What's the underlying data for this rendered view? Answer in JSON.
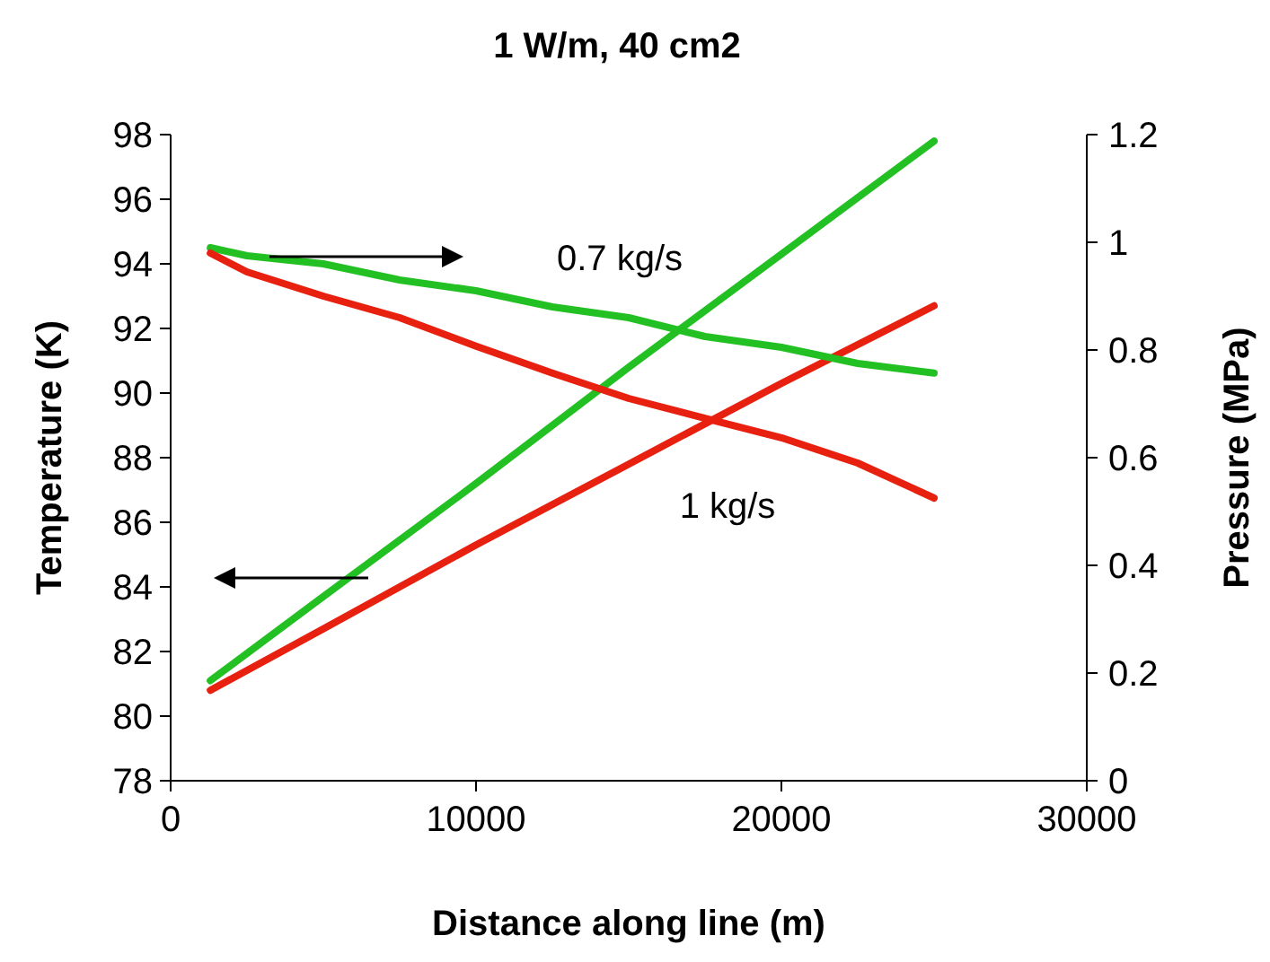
{
  "chart_data": {
    "type": "line",
    "title": "1 W/m, 40 cm2",
    "xlabel": "Distance along line (m)",
    "ylabel": "Temperature (K)",
    "y2label": "Pressure (MPa)",
    "xlim": [
      0,
      30000
    ],
    "xticks": [
      0,
      10000,
      20000,
      30000
    ],
    "ylim": [
      78,
      98
    ],
    "yticks": [
      78,
      80,
      82,
      84,
      86,
      88,
      90,
      92,
      94,
      96,
      98
    ],
    "y2lim": [
      0,
      1.2
    ],
    "y2ticks": [
      {
        "value": 0,
        "label": "0"
      },
      {
        "value": 0.2,
        "label": "0.2"
      },
      {
        "value": 0.4,
        "label": "0.4"
      },
      {
        "value": 0.6,
        "label": "0.6"
      },
      {
        "value": 0.8,
        "label": "0.8"
      },
      {
        "value": 1,
        "label": "1"
      },
      {
        "value": 1.2,
        "label": "1.2"
      }
    ],
    "grid": false,
    "marker": "none",
    "line_style": "solid",
    "series": [
      {
        "color": "#22c022",
        "x": [
          1300,
          5000,
          10000,
          15000,
          20000,
          25000
        ],
        "values": [
          81.1,
          83.7,
          87.2,
          90.8,
          94.3,
          97.8
        ]
      },
      {
        "color": "#e82010",
        "x": [
          1300,
          5000,
          10000,
          15000,
          20000,
          25000
        ],
        "values": [
          80.8,
          82.7,
          85.3,
          87.8,
          90.3,
          92.7
        ]
      },
      {
        "color": "#22c022",
        "axis": "y2",
        "x": [
          1300,
          2500,
          5000,
          7500,
          10000,
          12500,
          15000,
          17500,
          20000,
          22500,
          25000
        ],
        "values": [
          0.99,
          0.975,
          0.96,
          0.93,
          0.91,
          0.88,
          0.86,
          0.825,
          0.805,
          0.775,
          0.757
        ]
      },
      {
        "color": "#e82010",
        "axis": "y2",
        "x": [
          1300,
          2500,
          5000,
          7500,
          10000,
          12500,
          15000,
          17500,
          20000,
          22500,
          25000
        ],
        "values": [
          0.98,
          0.945,
          0.9,
          0.86,
          0.807,
          0.757,
          0.71,
          0.673,
          0.637,
          0.59,
          0.525
        ]
      }
    ],
    "annotations": [
      "0.7 kg/s",
      "1 kg/s"
    ]
  }
}
